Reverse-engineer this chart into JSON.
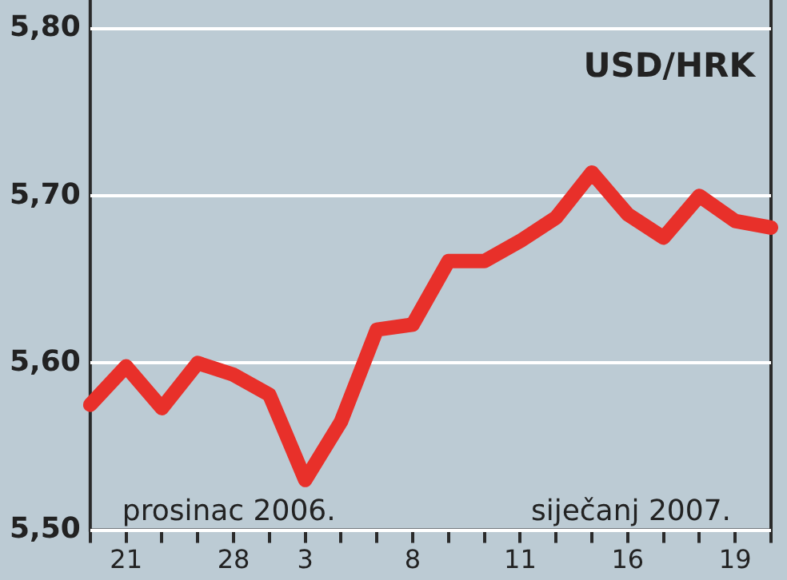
{
  "chart_data": {
    "type": "line",
    "title": "USD/HRK",
    "categories": [
      null,
      "21",
      null,
      null,
      "28",
      null,
      "3",
      null,
      null,
      "8",
      null,
      null,
      "11",
      null,
      null,
      "16",
      null,
      null,
      "19",
      null
    ],
    "series": [
      {
        "color": "#e8302a",
        "values": [
          5.575,
          5.598,
          5.573,
          5.6,
          5.593,
          5.581,
          5.53,
          5.565,
          5.62,
          5.623,
          5.661,
          5.661,
          5.673,
          5.687,
          5.714,
          5.689,
          5.675,
          5.7,
          5.685,
          5.681
        ]
      }
    ],
    "ylim": [
      5.5,
      5.8
    ],
    "yticks": [
      {
        "value": 5.5,
        "label": "5,50"
      },
      {
        "value": 5.6,
        "label": "5,60"
      },
      {
        "value": 5.7,
        "label": "5,70"
      },
      {
        "value": 5.8,
        "label": "5,80"
      }
    ],
    "grid": "y",
    "legend": false,
    "marker": "none",
    "line_style": "solid",
    "annotations": [
      "prosinac 2006.",
      "siječanj 2007."
    ]
  }
}
